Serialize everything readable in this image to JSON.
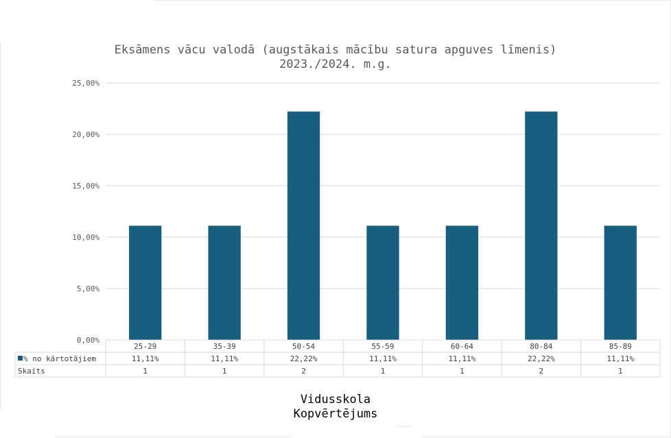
{
  "chart_data": {
    "type": "bar",
    "title_line1": "Eksāmens vācu valodā (augstākais mācību satura apguves līmenis)",
    "title_line2": "2023./2024. m.g.",
    "categories": [
      "25-29",
      "35-39",
      "50-54",
      "55-59",
      "60-64",
      "80-84",
      "85-89"
    ],
    "series": [
      {
        "name": "% no kārtotājiem",
        "values": [
          11.11,
          11.11,
          22.22,
          11.11,
          11.11,
          22.22,
          11.11
        ],
        "labels": [
          "11,11%",
          "11,11%",
          "22,22%",
          "11,11%",
          "11,11%",
          "22,22%",
          "11,11%"
        ],
        "color": "#175e7f"
      }
    ],
    "table_rows": [
      {
        "name": "% no kārtotājiem",
        "values": [
          "11,11%",
          "11,11%",
          "22,22%",
          "11,11%",
          "11,11%",
          "22,22%",
          "11,11%"
        ]
      },
      {
        "name": "Skaits",
        "values": [
          "1",
          "1",
          "2",
          "1",
          "1",
          "2",
          "1"
        ]
      }
    ],
    "yticks": [
      "0,00%",
      "5,00%",
      "10,00%",
      "15,00%",
      "20,00%",
      "25,00%"
    ],
    "ylim": [
      0,
      25
    ],
    "xlabel_line1": "Vidusskola",
    "xlabel_line2": "Kopvērtējums",
    "grid": true
  }
}
